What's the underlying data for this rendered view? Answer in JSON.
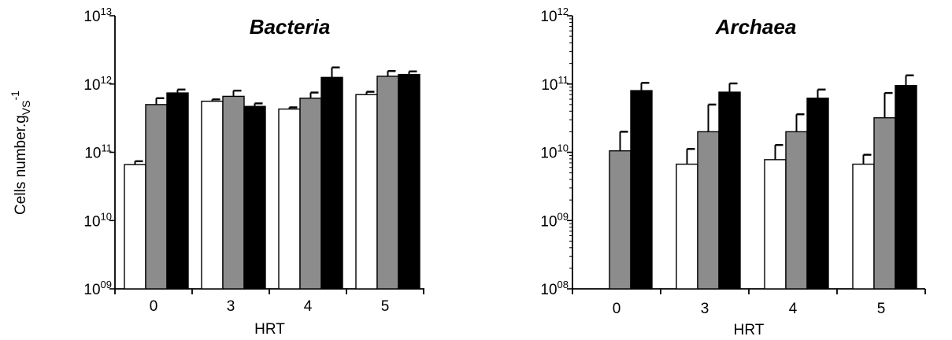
{
  "ylabel": {
    "main": "Cells number.g",
    "sub": "VS",
    "sup": "-1"
  },
  "colors": {
    "white": "#ffffff",
    "gray": "#8c8c8c",
    "black": "#000000",
    "axis": "#000000"
  },
  "chart_data": [
    {
      "type": "bar",
      "title": "Bacteria",
      "xlabel": "HRT",
      "ylabel": "Cells number.gVS-1",
      "yscale": "log",
      "ylim": [
        1000000000.0,
        10000000000000.0
      ],
      "yticks": [
        {
          "base": "10",
          "exp": "09",
          "value": 1000000000.0
        },
        {
          "base": "10",
          "exp": "10",
          "value": 10000000000.0
        },
        {
          "base": "10",
          "exp": "11",
          "value": 100000000000.0
        },
        {
          "base": "10",
          "exp": "12",
          "value": 1000000000000.0
        },
        {
          "base": "10",
          "exp": "13",
          "value": 10000000000000.0
        }
      ],
      "categories": [
        "0",
        "3",
        "4",
        "5"
      ],
      "series": [
        {
          "color": "white",
          "values": [
            66000000000.0,
            560000000000.0,
            430000000000.0,
            700000000000.0
          ],
          "errors": [
            8000000000.0,
            35000000000.0,
            25000000000.0,
            70000000000.0
          ]
        },
        {
          "color": "gray",
          "values": [
            500000000000.0,
            660000000000.0,
            620000000000.0,
            1300000000000.0
          ],
          "errors": [
            120000000000.0,
            140000000000.0,
            130000000000.0,
            250000000000.0
          ]
        },
        {
          "color": "black",
          "values": [
            740000000000.0,
            470000000000.0,
            1250000000000.0,
            1380000000000.0
          ],
          "errors": [
            90000000000.0,
            50000000000.0,
            500000000000.0,
            150000000000.0
          ]
        }
      ]
    },
    {
      "type": "bar",
      "title": "Archaea",
      "xlabel": "HRT",
      "ylabel": "",
      "yscale": "log",
      "ylim": [
        100000000.0,
        1000000000000.0
      ],
      "yticks": [
        {
          "base": "10",
          "exp": "08",
          "value": 100000000.0
        },
        {
          "base": "10",
          "exp": "09",
          "value": 1000000000.0
        },
        {
          "base": "10",
          "exp": "10",
          "value": 10000000000.0
        },
        {
          "base": "10",
          "exp": "11",
          "value": 100000000000.0
        },
        {
          "base": "10",
          "exp": "12",
          "value": 1000000000000.0
        }
      ],
      "categories": [
        "0",
        "3",
        "4",
        "5"
      ],
      "series": [
        {
          "color": "white",
          "values": [
            null,
            6700000000.0,
            7800000000.0,
            6700000000.0
          ],
          "errors": [
            null,
            4500000000.0,
            5000000000.0,
            2500000000.0
          ]
        },
        {
          "color": "gray",
          "values": [
            10500000000.0,
            20000000000.0,
            20000000000.0,
            32000000000.0
          ],
          "errors": [
            9500000000.0,
            30000000000.0,
            16000000000.0,
            42000000000.0
          ]
        },
        {
          "color": "black",
          "values": [
            80000000000.0,
            76000000000.0,
            62000000000.0,
            95000000000.0
          ],
          "errors": [
            24000000000.0,
            26000000000.0,
            21000000000.0,
            39000000000.0
          ]
        }
      ]
    }
  ]
}
